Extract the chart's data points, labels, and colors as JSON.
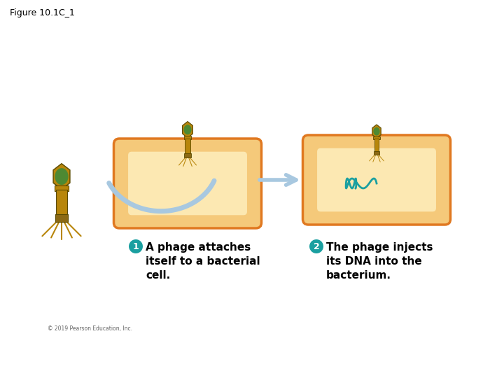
{
  "title": "Figure 10.1C_1",
  "title_fontsize": 9,
  "background_color": "#ffffff",
  "step1_label": "A phage attaches\nitself to a bacterial\ncell.",
  "step2_label": "The phage injects\nits DNA into the\nbacterium.",
  "step1_num": "1",
  "step2_num": "2",
  "num_color": "#1a9fa0",
  "cell_fill": "#f5c97a",
  "cell_inner_fill": "#fce8b2",
  "cell_edge": "#e07820",
  "phage_body_color": "#b8860b",
  "phage_dark": "#8b6914",
  "phage_green": "#3a8a3a",
  "arrow_color": "#a8c8e0",
  "dna_color": "#1a9fa0",
  "copyright": "© 2019 Pearson Education, Inc.",
  "label_fontsize": 11
}
